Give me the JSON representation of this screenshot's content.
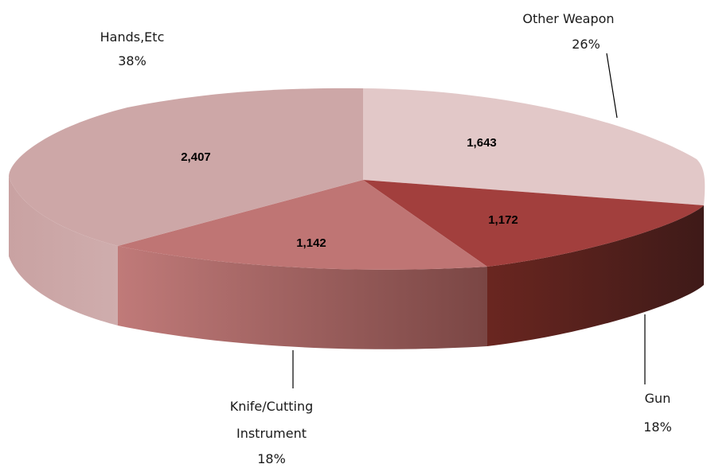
{
  "chart_data": {
    "type": "pie",
    "title": "",
    "slices": [
      {
        "name": "Other Weapon",
        "value": 1643,
        "value_label": "1,643",
        "percent_label": "26%",
        "color": "#e2c8c8"
      },
      {
        "name": "Gun",
        "value": 1172,
        "value_label": "1,172",
        "percent_label": "18%",
        "color": "#a23f3d"
      },
      {
        "name": "Knife/Cutting Instrument",
        "value": 1142,
        "value_label": "1,142",
        "percent_label": "18%",
        "color": "#bf7574"
      },
      {
        "name": "Hands,Etc",
        "value": 2407,
        "value_label": "2,407",
        "percent_label": "38%",
        "color": "#cda7a7"
      }
    ],
    "legend": "none",
    "style": "3d-pie"
  },
  "labels": {
    "other_weapon": {
      "line1": "Other Weapon",
      "line2": "26%"
    },
    "gun": {
      "line1": "Gun",
      "line2": "18%"
    },
    "knife": {
      "line1": "Knife/Cutting",
      "line2": "Instrument",
      "line3": "18%"
    },
    "hands": {
      "line1": "Hands,Etc",
      "line2": "38%"
    }
  }
}
